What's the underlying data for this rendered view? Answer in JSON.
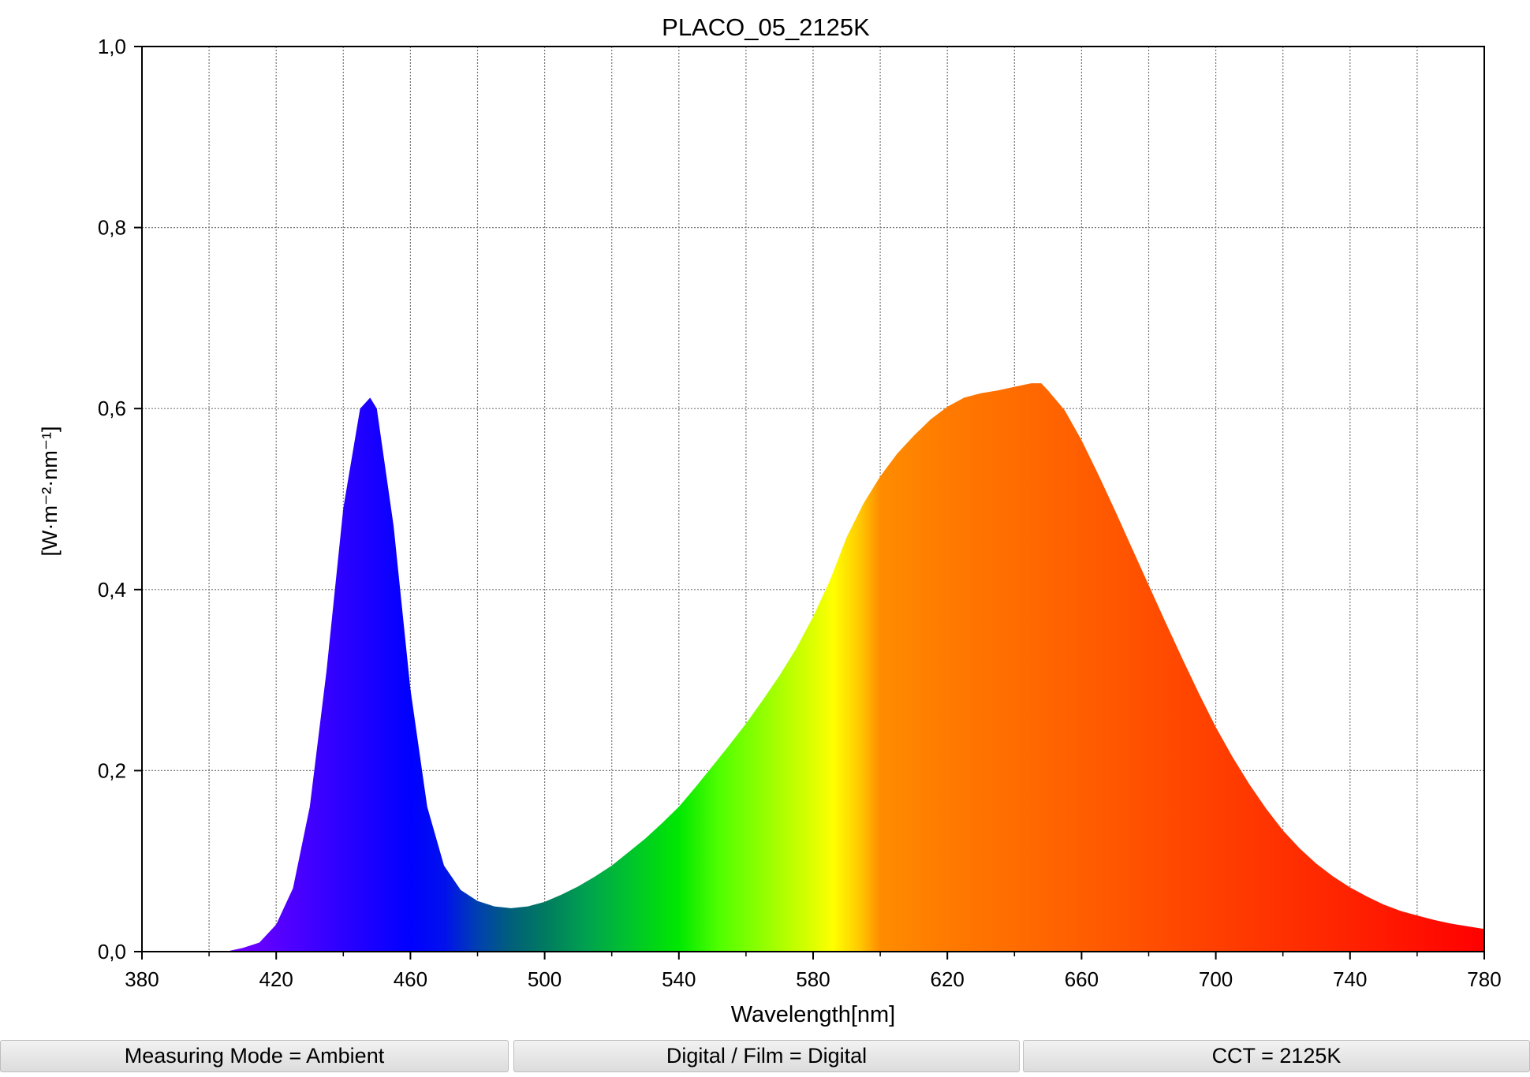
{
  "chart_data": {
    "type": "area",
    "title": "PLACO_05_2125K",
    "xlabel": "Wavelength[nm]",
    "ylabel": "[W·m⁻²·nm⁻¹]",
    "xlim": [
      380,
      780
    ],
    "ylim": [
      0,
      1
    ],
    "grid": true,
    "x_ticks": [
      "380",
      "420",
      "460",
      "500",
      "540",
      "580",
      "620",
      "660",
      "700",
      "740",
      "780"
    ],
    "y_ticks": [
      "0,0",
      "0,2",
      "0,4",
      "0,6",
      "0,8",
      "1,0"
    ],
    "fill": "visible-spectrum colour gradient",
    "x": [
      405,
      410,
      415,
      420,
      425,
      430,
      435,
      440,
      445,
      448,
      450,
      455,
      460,
      465,
      470,
      475,
      480,
      485,
      490,
      495,
      500,
      505,
      510,
      515,
      520,
      525,
      530,
      535,
      540,
      545,
      550,
      555,
      560,
      565,
      570,
      575,
      580,
      585,
      590,
      595,
      600,
      605,
      610,
      615,
      620,
      625,
      630,
      635,
      640,
      645,
      648,
      650,
      655,
      660,
      665,
      670,
      675,
      680,
      685,
      690,
      695,
      700,
      705,
      710,
      715,
      720,
      725,
      730,
      735,
      740,
      745,
      750,
      755,
      760,
      765,
      770,
      775,
      780
    ],
    "y": [
      0.0,
      0.004,
      0.01,
      0.03,
      0.07,
      0.16,
      0.31,
      0.49,
      0.6,
      0.612,
      0.6,
      0.47,
      0.29,
      0.16,
      0.095,
      0.068,
      0.056,
      0.05,
      0.048,
      0.05,
      0.055,
      0.063,
      0.072,
      0.083,
      0.095,
      0.11,
      0.125,
      0.142,
      0.16,
      0.182,
      0.205,
      0.228,
      0.252,
      0.278,
      0.305,
      0.335,
      0.37,
      0.41,
      0.458,
      0.495,
      0.525,
      0.55,
      0.57,
      0.588,
      0.602,
      0.612,
      0.617,
      0.62,
      0.624,
      0.628,
      0.628,
      0.62,
      0.598,
      0.565,
      0.527,
      0.487,
      0.446,
      0.405,
      0.364,
      0.324,
      0.285,
      0.248,
      0.215,
      0.185,
      0.158,
      0.134,
      0.114,
      0.097,
      0.083,
      0.071,
      0.061,
      0.052,
      0.045,
      0.04,
      0.035,
      0.031,
      0.028,
      0.025
    ]
  },
  "status_bar": {
    "measuring_mode": "Measuring Mode = Ambient",
    "digital_film": "Digital / Film = Digital",
    "cct": "CCT = 2125K"
  }
}
